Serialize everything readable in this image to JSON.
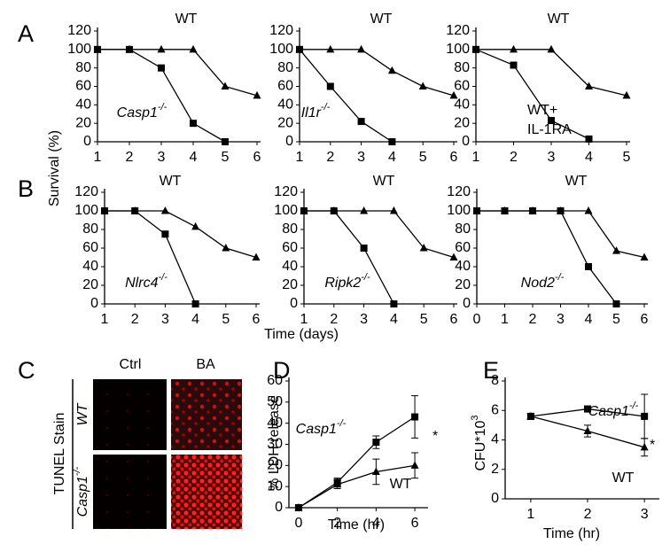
{
  "panel_labels": [
    "A",
    "B",
    "C",
    "D",
    "E"
  ],
  "survival_axis_label": "Survival (%)",
  "survival_time_label": "Time (days)",
  "panel_c": {
    "stain": "TUNEL Stain",
    "columns": [
      "Ctrl",
      "BA"
    ],
    "rows": [
      {
        "text": "WT"
      },
      {
        "text": "Casp1",
        "sup": "-/-"
      }
    ]
  },
  "chart_data": [
    {
      "type": "line",
      "xlim": [
        1,
        6
      ],
      "xticks": [
        1,
        2,
        3,
        4,
        5,
        6
      ],
      "ylim": [
        0,
        120
      ],
      "yticks": [
        0,
        20,
        40,
        60,
        80,
        100,
        120
      ],
      "series": [
        {
          "name": "WT",
          "marker": "triangle",
          "color": "#000000",
          "x": [
            1,
            2,
            3,
            4,
            5,
            6
          ],
          "values": [
            100,
            100,
            100,
            100,
            60,
            50
          ]
        },
        {
          "name": "Casp1",
          "name_sup": "-/-",
          "marker": "square",
          "color": "#000000",
          "x": [
            1,
            2,
            3,
            4,
            5
          ],
          "values": [
            100,
            100,
            80,
            20,
            0
          ]
        }
      ]
    },
    {
      "type": "line",
      "xlim": [
        1,
        6
      ],
      "xticks": [
        1,
        2,
        3,
        4,
        5,
        6
      ],
      "ylim": [
        0,
        120
      ],
      "yticks": [
        0,
        20,
        40,
        60,
        80,
        100,
        120
      ],
      "series": [
        {
          "name": "WT",
          "marker": "triangle",
          "color": "#000000",
          "x": [
            1,
            2,
            3,
            4,
            5,
            6
          ],
          "values": [
            100,
            100,
            100,
            77,
            60,
            50
          ]
        },
        {
          "name": "Il1r",
          "name_sup": "-/-",
          "marker": "square",
          "color": "#000000",
          "x": [
            1,
            2,
            3,
            4
          ],
          "values": [
            100,
            60,
            22,
            0
          ]
        }
      ]
    },
    {
      "type": "line",
      "xlim": [
        1,
        5
      ],
      "xticks": [
        1,
        2,
        3,
        4,
        5
      ],
      "ylim": [
        0,
        120
      ],
      "yticks": [
        0,
        20,
        40,
        60,
        80,
        100,
        120
      ],
      "series": [
        {
          "name": "WT",
          "marker": "triangle",
          "color": "#000000",
          "x": [
            1,
            2,
            3,
            4,
            5
          ],
          "values": [
            100,
            100,
            100,
            60,
            50
          ]
        },
        {
          "name": "WT+",
          "name_line2": "IL-1RA",
          "marker": "square",
          "color": "#000000",
          "x": [
            1,
            2,
            3,
            4
          ],
          "values": [
            100,
            83,
            23,
            3
          ]
        }
      ]
    },
    {
      "type": "line",
      "xlim": [
        1,
        6
      ],
      "xticks": [
        1,
        2,
        3,
        4,
        5,
        6
      ],
      "ylim": [
        0,
        120
      ],
      "yticks": [
        0,
        20,
        40,
        60,
        80,
        100,
        120
      ],
      "series": [
        {
          "name": "WT",
          "marker": "triangle",
          "color": "#000000",
          "x": [
            1,
            2,
            3,
            4,
            5,
            6
          ],
          "values": [
            100,
            100,
            100,
            83,
            60,
            50
          ]
        },
        {
          "name": "Nlrc4",
          "name_sup": "-/-",
          "marker": "square",
          "color": "#000000",
          "x": [
            1,
            2,
            3,
            4
          ],
          "values": [
            100,
            100,
            75,
            0
          ]
        }
      ]
    },
    {
      "type": "line",
      "xlim": [
        1,
        6
      ],
      "xticks": [
        1,
        2,
        3,
        4,
        5,
        6
      ],
      "ylim": [
        0,
        120
      ],
      "yticks": [
        0,
        20,
        40,
        60,
        80,
        100,
        120
      ],
      "series": [
        {
          "name": "WT",
          "marker": "triangle",
          "color": "#000000",
          "x": [
            1,
            2,
            3,
            4,
            5,
            6
          ],
          "values": [
            100,
            100,
            100,
            100,
            60,
            50
          ]
        },
        {
          "name": "Ripk2",
          "name_sup": "-/-",
          "marker": "square",
          "color": "#000000",
          "x": [
            1,
            2,
            3,
            4
          ],
          "values": [
            100,
            100,
            60,
            0
          ]
        }
      ]
    },
    {
      "type": "line",
      "xlim": [
        0,
        6
      ],
      "xticks": [
        0,
        1,
        2,
        3,
        4,
        5,
        6
      ],
      "ylim": [
        0,
        120
      ],
      "yticks": [
        0,
        20,
        40,
        60,
        80,
        100,
        120
      ],
      "series": [
        {
          "name": "WT",
          "marker": "triangle",
          "color": "#000000",
          "x": [
            0,
            1,
            2,
            3,
            4,
            5,
            6
          ],
          "values": [
            100,
            100,
            100,
            100,
            100,
            57,
            50
          ]
        },
        {
          "name": "Nod2",
          "name_sup": "-/-",
          "marker": "square",
          "color": "#000000",
          "x": [
            0,
            1,
            2,
            3,
            4,
            5
          ],
          "values": [
            100,
            100,
            100,
            100,
            40,
            0
          ]
        }
      ]
    },
    {
      "type": "line",
      "xlim": [
        -0.5,
        6.5
      ],
      "xticks": [
        0,
        2,
        4,
        6
      ],
      "ylim": [
        0,
        60
      ],
      "yticks": [
        0,
        10,
        20,
        30,
        40,
        50,
        60
      ],
      "xlabel": "Time (hr)",
      "ylabel": "% LDH release",
      "annotation": "*",
      "series": [
        {
          "name": "Casp1",
          "name_sup": "-/-",
          "marker": "square",
          "color": "#000000",
          "x": [
            0,
            2,
            4,
            6
          ],
          "values": [
            0,
            12,
            31,
            43
          ],
          "errors": [
            0,
            2,
            3,
            10
          ]
        },
        {
          "name": "WT",
          "marker": "triangle",
          "color": "#000000",
          "x": [
            0,
            2,
            4,
            6
          ],
          "values": [
            0,
            11,
            17,
            20
          ],
          "errors": [
            0,
            2,
            6,
            6
          ]
        }
      ]
    },
    {
      "type": "line",
      "xlim": [
        0.55,
        3.2
      ],
      "xticks": [
        1,
        2,
        3
      ],
      "ylim": [
        0,
        8
      ],
      "yticks": [
        0,
        2,
        4,
        6,
        8
      ],
      "xlabel": "Time (hr)",
      "ylabel": "CFU*10",
      "ylabel_sup": "3",
      "annotation": "*",
      "series": [
        {
          "name": "Casp1",
          "name_sup": "-/-",
          "marker": "square",
          "color": "#000000",
          "x": [
            1,
            2,
            3
          ],
          "values": [
            5.6,
            6.1,
            5.6
          ],
          "errors": [
            0.2,
            0.2,
            1.5
          ]
        },
        {
          "name": "WT",
          "marker": "triangle",
          "color": "#000000",
          "x": [
            1,
            2,
            3
          ],
          "values": [
            5.6,
            4.6,
            3.5
          ],
          "errors": [
            0.2,
            0.4,
            0.6
          ]
        }
      ]
    }
  ]
}
